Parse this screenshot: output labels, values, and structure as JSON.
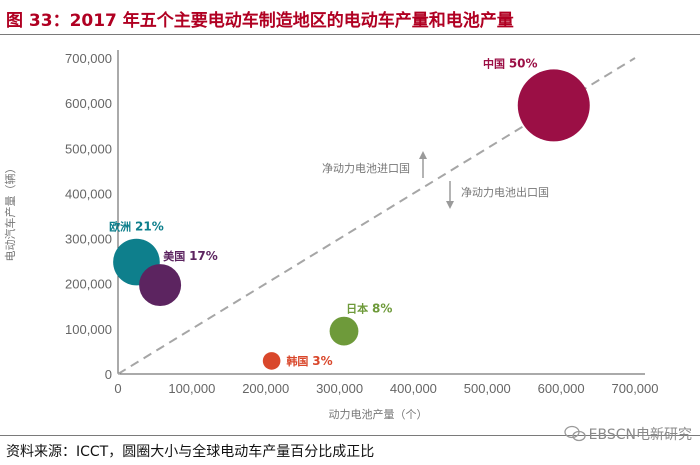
{
  "header": {
    "title": "图 33：2017 年五个主要电动车制造地区的电动车产量和电池产量"
  },
  "footer": {
    "source": "资料来源：ICCT，圆圈大小与全球电动车产量百分比成正比",
    "watermark": "EBSCN电新研究"
  },
  "chart_data": {
    "type": "scatter",
    "title": "2017 年五个主要电动车制造地区的电动车产量和电池产量",
    "xlabel": "动力电池产量（个）",
    "ylabel": "电动汽车产量（辆）",
    "xlim": [
      0,
      700000
    ],
    "ylim": [
      0,
      700000
    ],
    "x_ticks": [
      "0",
      "100,000",
      "200,000",
      "300,000",
      "400,000",
      "500,000",
      "600,000",
      "700,000"
    ],
    "y_ticks": [
      "0",
      "100,000",
      "200,000",
      "300,000",
      "400,000",
      "500,000",
      "600,000",
      "700,000"
    ],
    "reference_line": {
      "style": "dashed",
      "from": [
        0,
        0
      ],
      "to": [
        700000,
        700000
      ]
    },
    "annotations": {
      "import_label": "净动力电池进口国",
      "export_label": "净动力电池出口国"
    },
    "points": [
      {
        "name": "中国",
        "share": "50%",
        "share_value": 50,
        "x": 590000,
        "y": 595000,
        "color": "#9b0f45"
      },
      {
        "name": "欧洲",
        "share": "21%",
        "share_value": 21,
        "x": 25000,
        "y": 248000,
        "color": "#0e7f8c"
      },
      {
        "name": "美国",
        "share": "17%",
        "share_value": 17,
        "x": 57000,
        "y": 197000,
        "color": "#5c2460"
      },
      {
        "name": "日本",
        "share": "8%",
        "share_value": 8,
        "x": 306000,
        "y": 95000,
        "color": "#6e9a3a"
      },
      {
        "name": "韩国",
        "share": "3%",
        "share_value": 3,
        "x": 208000,
        "y": 29000,
        "color": "#d9472b"
      }
    ]
  }
}
